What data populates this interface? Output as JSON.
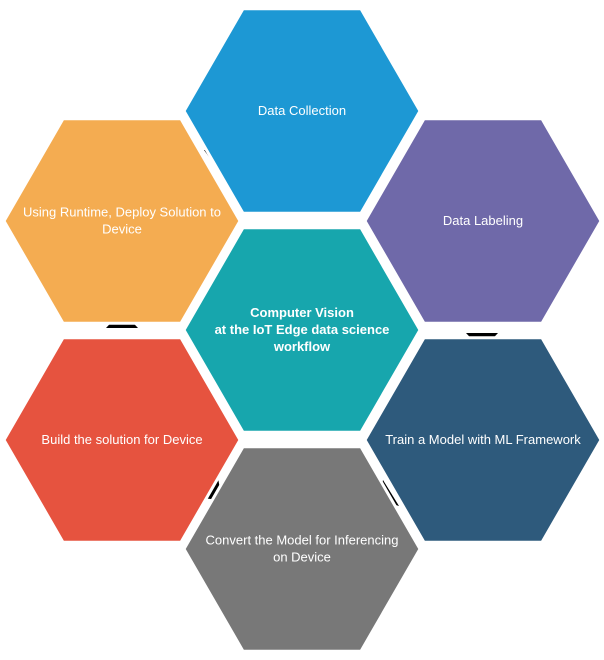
{
  "center": {
    "lines": [
      "Computer Vision",
      "at the IoT Edge data science",
      "workflow"
    ],
    "color": "#17a6ad"
  },
  "steps": [
    {
      "id": "data-collection",
      "lines": [
        "Data Collection"
      ],
      "color": "#1d98d4"
    },
    {
      "id": "data-labeling",
      "lines": [
        "Data Labeling"
      ],
      "color": "#6f69a9"
    },
    {
      "id": "train-model",
      "lines": [
        "Train a Model with ML Framework"
      ],
      "color": "#2e5a7c"
    },
    {
      "id": "convert-model",
      "lines": [
        "Convert the Model for Inferencing",
        "on Device"
      ],
      "color": "#787878"
    },
    {
      "id": "build-solution",
      "lines": [
        "Build the solution for Device"
      ],
      "color": "#e6533f"
    },
    {
      "id": "deploy-solution",
      "lines": [
        "Using Runtime, Deploy Solution to",
        "Device"
      ],
      "color": "#f4ac51"
    }
  ],
  "arrow_color": "#000000",
  "border_color": "#ffffff"
}
